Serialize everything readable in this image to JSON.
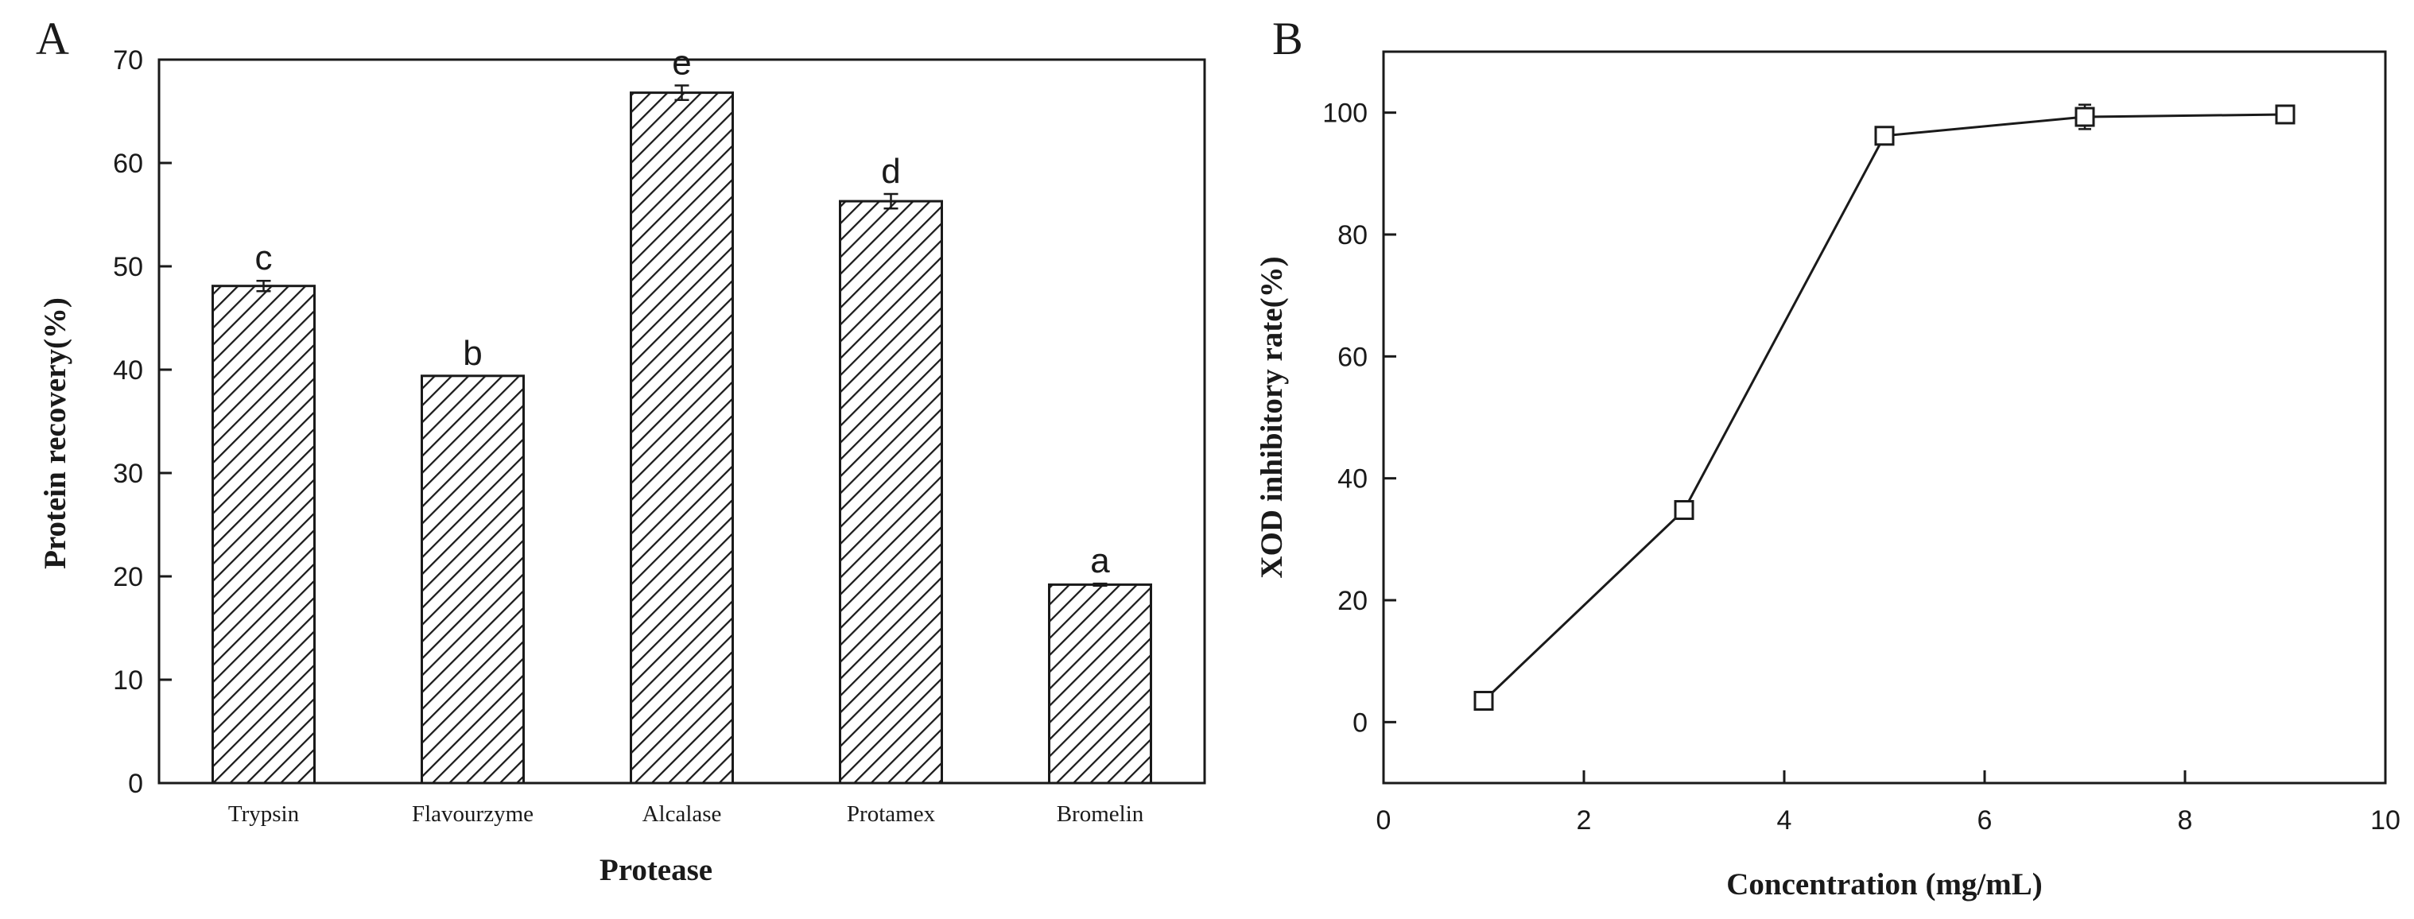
{
  "chart_data": [
    {
      "panel": "A",
      "type": "bar",
      "xlabel": "Protease",
      "ylabel": "Protein recovery(%)",
      "categories": [
        "Trypsin",
        "Flavourzyme",
        "Alcalase",
        "Protamex",
        "Bromelin"
      ],
      "values": [
        48.1,
        39.4,
        66.8,
        56.3,
        19.2
      ],
      "errors": [
        0.5,
        0.0,
        0.7,
        0.7,
        0.1
      ],
      "annotations": [
        "c",
        "b",
        "e",
        "d",
        "a"
      ],
      "ylim": [
        0,
        70
      ],
      "yticks": [
        0,
        10,
        20,
        30,
        40,
        50,
        60,
        70
      ],
      "bar_fill": "diagonal hatch",
      "grid": false,
      "legend": "none"
    },
    {
      "panel": "B",
      "type": "line",
      "xlabel": "Concentration (mg/mL)",
      "ylabel": "XOD inhibitory rate(%)",
      "x": [
        1,
        3,
        5,
        7,
        9
      ],
      "y": [
        3.5,
        34.8,
        96.2,
        99.3,
        99.7
      ],
      "errors": [
        0.8,
        1.0,
        0.8,
        2.0,
        0.5
      ],
      "xlim": [
        0,
        10
      ],
      "ylim": [
        -10,
        110
      ],
      "xticks": [
        0,
        2,
        4,
        6,
        8,
        10
      ],
      "yticks": [
        0,
        20,
        40,
        60,
        80,
        100
      ],
      "marker": "open square",
      "grid": false,
      "legend": "none"
    }
  ],
  "colors": {
    "ink": "#1a1a1a",
    "background": "#ffffff"
  }
}
